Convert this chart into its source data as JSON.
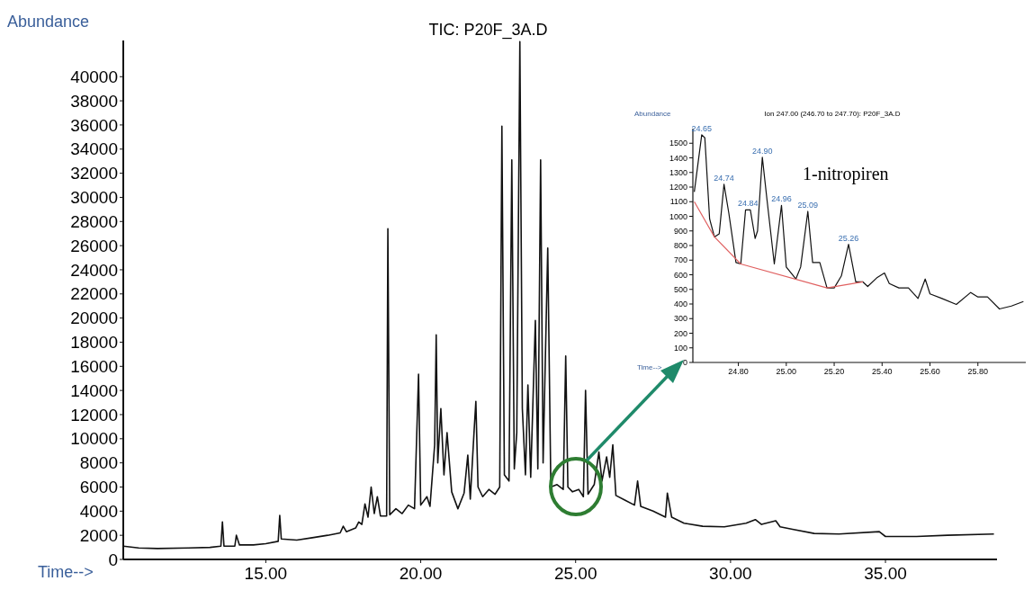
{
  "chart_data": [
    {
      "type": "line",
      "title": "TIC: P20F_3A.D",
      "xlabel": "Time-->",
      "ylabel": "Abundance",
      "xlim": [
        10.4,
        38.6
      ],
      "ylim": [
        0,
        43000
      ],
      "xticks": [
        {
          "value": 15,
          "label": "15.00"
        },
        {
          "value": 20,
          "label": "20.00"
        },
        {
          "value": 25,
          "label": "25.00"
        },
        {
          "value": 30,
          "label": "30.00"
        },
        {
          "value": 35,
          "label": "35.00"
        }
      ],
      "yticks": [
        0,
        2000,
        4000,
        6000,
        8000,
        10000,
        12000,
        14000,
        16000,
        18000,
        20000,
        22000,
        24000,
        26000,
        28000,
        30000,
        32000,
        34000,
        36000,
        38000,
        40000
      ],
      "grid": false,
      "line_style": "solid",
      "series": [
        {
          "color": "#111111",
          "x": [
            10.4,
            10.9,
            11.5,
            12.5,
            13.2,
            13.55,
            13.6,
            13.65,
            14.0,
            14.05,
            14.15,
            14.6,
            15.0,
            15.4,
            15.45,
            15.5,
            16.0,
            16.5,
            17.0,
            17.4,
            17.5,
            17.6,
            17.9,
            18.0,
            18.1,
            18.2,
            18.3,
            18.4,
            18.5,
            18.6,
            18.7,
            18.9,
            18.94,
            19.0,
            19.2,
            19.4,
            19.6,
            19.8,
            19.93,
            20.0,
            20.2,
            20.3,
            20.45,
            20.5,
            20.55,
            20.65,
            20.75,
            20.85,
            21.0,
            21.2,
            21.4,
            21.52,
            21.6,
            21.72,
            21.78,
            21.85,
            22.0,
            22.2,
            22.4,
            22.55,
            22.62,
            22.7,
            22.85,
            22.94,
            23.02,
            23.1,
            23.2,
            23.28,
            23.38,
            23.46,
            23.55,
            23.7,
            23.78,
            23.87,
            23.95,
            24.1,
            24.2,
            24.4,
            24.6,
            24.68,
            24.75,
            24.9,
            25.1,
            25.25,
            25.32,
            25.4,
            25.6,
            25.75,
            25.85,
            26.0,
            26.1,
            26.2,
            26.3,
            26.6,
            26.9,
            27.0,
            27.1,
            27.5,
            27.9,
            27.96,
            28.1,
            28.5,
            29.1,
            29.8,
            30.5,
            30.8,
            31.0,
            31.46,
            31.6,
            32.0,
            32.7,
            33.5,
            34.8,
            35.0,
            36.0,
            37.0,
            38.5
          ],
          "values": [
            1100,
            950,
            900,
            950,
            1000,
            1100,
            3100,
            1100,
            1100,
            2000,
            1200,
            1200,
            1300,
            1500,
            3650,
            1700,
            1600,
            1800,
            2000,
            2200,
            2750,
            2300,
            2600,
            3100,
            2900,
            4600,
            3500,
            6000,
            3800,
            5200,
            3600,
            3600,
            27400,
            3700,
            4200,
            3800,
            4500,
            4200,
            15350,
            4500,
            5200,
            4400,
            9500,
            18600,
            8000,
            12500,
            7000,
            10500,
            5600,
            4200,
            5500,
            8650,
            5000,
            10500,
            13100,
            6000,
            5200,
            5800,
            5400,
            6000,
            35900,
            7000,
            6500,
            33100,
            7500,
            10500,
            42900,
            12500,
            7000,
            14450,
            6800,
            19800,
            7500,
            33100,
            8000,
            25800,
            6000,
            6200,
            5800,
            16850,
            6000,
            5600,
            5800,
            5200,
            14000,
            5400,
            6200,
            8900,
            6500,
            8500,
            6800,
            9500,
            5300,
            4900,
            4500,
            6500,
            4400,
            4000,
            3500,
            5500,
            3500,
            3000,
            2750,
            2700,
            3000,
            3300,
            2900,
            3200,
            2700,
            2500,
            2150,
            2100,
            2300,
            1900,
            1900,
            2000,
            2100
          ]
        }
      ]
    },
    {
      "type": "line",
      "title": "Ion 247.00 (246.70 to 247.70): P20F_3A.D",
      "xlabel": "Time-->",
      "ylabel": "Abundance",
      "xlim": [
        24.61,
        26.0
      ],
      "ylim": [
        0,
        1600
      ],
      "xticks": [
        {
          "value": 24.8,
          "label": "24.80"
        },
        {
          "value": 25.0,
          "label": "25.00"
        },
        {
          "value": 25.2,
          "label": "25.20"
        },
        {
          "value": 25.4,
          "label": "25.40"
        },
        {
          "value": 25.6,
          "label": "25.60"
        },
        {
          "value": 25.8,
          "label": "25.80"
        }
      ],
      "yticks": [
        0,
        100,
        200,
        300,
        400,
        500,
        600,
        700,
        800,
        900,
        1000,
        1100,
        1200,
        1300,
        1400,
        1500
      ],
      "grid": false,
      "line_style": "solid",
      "annotations": [
        "1-nitropiren",
        {
          "text": "24.65",
          "x": 24.647,
          "y": 1558
        },
        {
          "text": "24.74",
          "x": 24.74,
          "y": 1219
        },
        {
          "text": "24.84",
          "x": 24.84,
          "y": 1044
        },
        {
          "text": "24.90",
          "x": 24.9,
          "y": 1404
        },
        {
          "text": "24.96",
          "x": 24.98,
          "y": 1075
        },
        {
          "text": "25.09",
          "x": 25.09,
          "y": 1034
        },
        {
          "text": "25.26",
          "x": 25.26,
          "y": 808
        }
      ],
      "series": [
        {
          "color": "#111111",
          "x": [
            24.616,
            24.647,
            24.66,
            24.68,
            24.7,
            24.72,
            24.74,
            24.76,
            24.79,
            24.81,
            24.83,
            24.85,
            24.87,
            24.88,
            24.9,
            24.92,
            24.95,
            24.98,
            25.0,
            25.04,
            25.06,
            25.09,
            25.11,
            25.14,
            25.17,
            25.2,
            25.23,
            25.26,
            25.29,
            25.32,
            25.34,
            25.38,
            25.41,
            25.43,
            25.47,
            25.51,
            25.55,
            25.58,
            25.6,
            25.65,
            25.71,
            25.77,
            25.8,
            25.84,
            25.89,
            25.94,
            25.99
          ],
          "values": [
            1167,
            1558,
            1537,
            982,
            859,
            880,
            1219,
            1023,
            684,
            674,
            1044,
            1044,
            849,
            900,
            1404,
            1106,
            674,
            1075,
            653,
            571,
            653,
            1034,
            684,
            684,
            510,
            510,
            592,
            808,
            551,
            551,
            520,
            582,
            612,
            540,
            510,
            510,
            438,
            571,
            469,
            438,
            397,
            479,
            448,
            448,
            366,
            386,
            417
          ]
        },
        {
          "type": "line",
          "color": "#e06060",
          "x": [
            24.616,
            24.7,
            24.81,
            25.17,
            25.32
          ],
          "values": [
            1100,
            859,
            674,
            510,
            551
          ]
        }
      ]
    }
  ]
}
